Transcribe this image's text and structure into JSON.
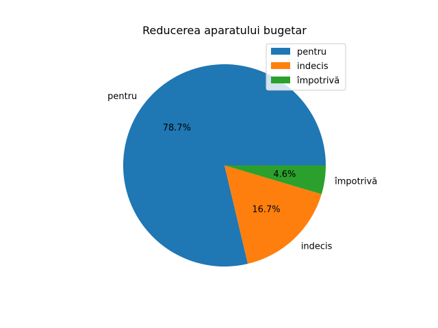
{
  "chart_data": {
    "type": "pie",
    "title": "Reducerea aparatului bugetar",
    "categories": [
      "pentru",
      "indecis",
      "împotrivă"
    ],
    "values": [
      78.7,
      16.7,
      4.6
    ],
    "value_labels": [
      "78.7%",
      "16.7%",
      "4.6%"
    ],
    "colors": [
      "#1f77b4",
      "#ff7f0e",
      "#2ca02c"
    ],
    "legend": {
      "placement": "top-right",
      "entries": [
        "pentru",
        "indecis",
        "împotrivă"
      ]
    },
    "start_angle": "0 degrees (3 o'clock), counterclockwise"
  }
}
